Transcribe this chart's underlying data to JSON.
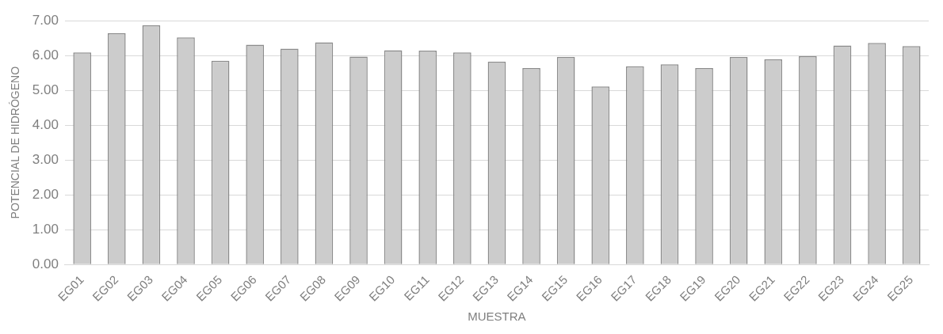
{
  "chart_data": {
    "type": "bar",
    "xlabel": "MUESTRA",
    "ylabel": "POTENCIAL DE HIDRÓGENO",
    "categories": [
      "EG01",
      "EG02",
      "EG03",
      "EG04",
      "EG05",
      "EG06",
      "EG07",
      "EG08",
      "EG09",
      "EG10",
      "EG11",
      "EG12",
      "EG13",
      "EG14",
      "EG15",
      "EG16",
      "EG17",
      "EG18",
      "EG19",
      "EG20",
      "EG21",
      "EG22",
      "EG23",
      "EG24",
      "EG25"
    ],
    "values": [
      6.09,
      6.64,
      6.87,
      6.52,
      5.85,
      6.31,
      6.2,
      6.38,
      5.97,
      6.15,
      6.14,
      6.09,
      5.82,
      5.64,
      5.96,
      5.11,
      5.69,
      5.75,
      5.64,
      5.96,
      5.89,
      5.98,
      6.29,
      6.36,
      6.27
    ],
    "color": "#cccccc",
    "ylim": [
      0,
      7
    ],
    "yticks": [
      {
        "value": 0,
        "label": "0.00"
      },
      {
        "value": 1,
        "label": "1.00"
      },
      {
        "value": 2,
        "label": "2.00"
      },
      {
        "value": 3,
        "label": "3.00"
      },
      {
        "value": 4,
        "label": "4.00"
      },
      {
        "value": 5,
        "label": "5.00"
      },
      {
        "value": 6,
        "label": "6.00"
      },
      {
        "value": 7,
        "label": "7.00"
      }
    ],
    "grid": "y",
    "legend": false
  }
}
